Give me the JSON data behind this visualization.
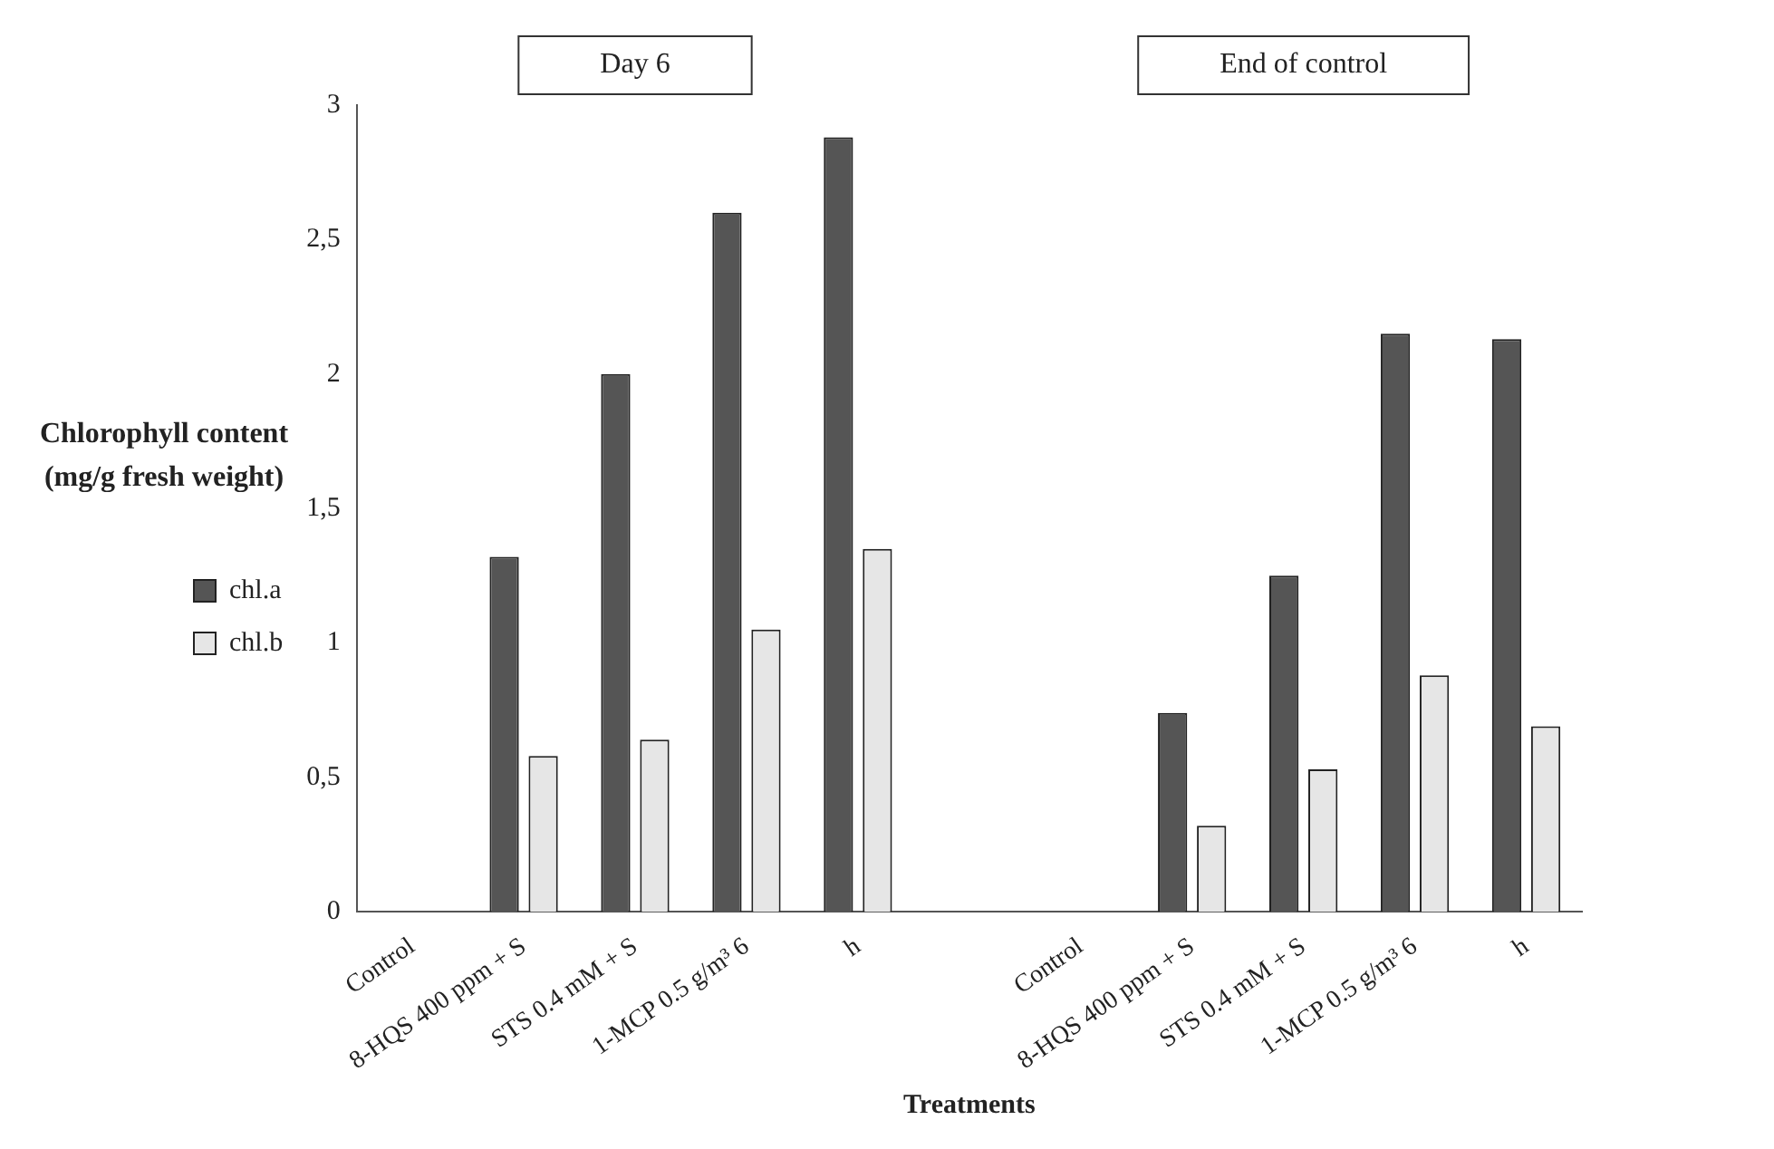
{
  "chart_data": {
    "type": "bar",
    "ylabel": "Chlorophyll content (mg/g fresh weight)",
    "xlabel": "Treatments",
    "categories": [
      "Control",
      "8-HQS 400 ppm + S",
      "STS 0.4 mM + S",
      "1-MCP 0.5 g/m³ 6",
      "h",
      null,
      "Control",
      "8-HQS 400 ppm + S",
      "STS 0.4 mM + S",
      "1-MCP 0.5 g/m³ 6",
      "h"
    ],
    "series": [
      {
        "name": "chl.a",
        "color": "#555555",
        "values": [
          0,
          1.32,
          2.0,
          2.6,
          2.88,
          null,
          0,
          0.74,
          1.25,
          2.15,
          2.13
        ]
      },
      {
        "name": "chl.b",
        "color": "#e6e6e6",
        "values": [
          null,
          0.58,
          0.64,
          1.05,
          1.35,
          null,
          null,
          0.32,
          0.53,
          0.88,
          0.69
        ]
      }
    ],
    "ylim": [
      0,
      3
    ],
    "yticks": [
      0,
      {
        "value": 0.5,
        "label": "0,5"
      },
      1,
      {
        "value": 1.5,
        "label": "1,5"
      },
      2,
      {
        "value": 2.5,
        "label": "2,5"
      },
      3
    ],
    "annotations": [
      "Day 6",
      "End of control"
    ],
    "legend": "left"
  }
}
